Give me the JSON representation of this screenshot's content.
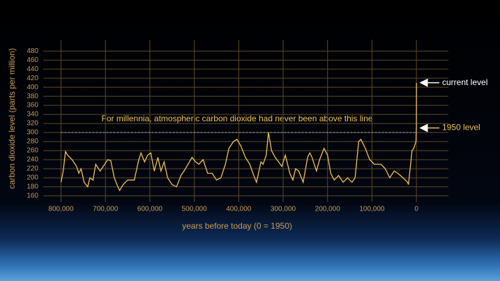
{
  "chart_data": {
    "type": "line",
    "y_label": "carbon dioxide level (parts per million)",
    "x_label": "years before today (0 = 1950)",
    "annotation": "For millennia, atmospheric carbon dioxide had never been above this line",
    "current_label": "current level",
    "reference_label": "1950 level",
    "reference_value": 300,
    "color": "#f2c15a",
    "grid": true,
    "x": [
      800000,
      795000,
      790000,
      785000,
      775000,
      765000,
      760000,
      755000,
      748000,
      740000,
      735000,
      728000,
      722000,
      712000,
      705000,
      695000,
      688000,
      680000,
      672000,
      668000,
      660000,
      650000,
      635000,
      625000,
      620000,
      612000,
      605000,
      598000,
      590000,
      582000,
      575000,
      568000,
      560000,
      550000,
      540000,
      530000,
      520000,
      505000,
      497000,
      490000,
      480000,
      470000,
      460000,
      450000,
      440000,
      430000,
      422000,
      412000,
      404000,
      395000,
      385000,
      375000,
      368000,
      360000,
      350000,
      345000,
      338000,
      333000,
      326000,
      318000,
      310000,
      303000,
      295000,
      285000,
      278000,
      272000,
      265000,
      255000,
      245000,
      240000,
      235000,
      225000,
      218000,
      208000,
      200000,
      193000,
      185000,
      175000,
      165000,
      155000,
      145000,
      138000,
      130000,
      125000,
      115000,
      105000,
      95000,
      80000,
      70000,
      60000,
      50000,
      42000,
      30000,
      20000,
      18000,
      12000,
      10000,
      6000,
      1000,
      0,
      -69
    ],
    "values": [
      190,
      215,
      258,
      250,
      240,
      225,
      210,
      220,
      190,
      180,
      200,
      195,
      230,
      215,
      225,
      240,
      238,
      200,
      180,
      172,
      185,
      195,
      195,
      240,
      255,
      235,
      250,
      255,
      215,
      245,
      215,
      235,
      200,
      185,
      180,
      205,
      220,
      245,
      235,
      230,
      240,
      210,
      210,
      195,
      200,
      230,
      265,
      280,
      285,
      270,
      245,
      230,
      210,
      190,
      235,
      230,
      250,
      300,
      260,
      245,
      235,
      225,
      250,
      210,
      195,
      220,
      215,
      190,
      245,
      255,
      245,
      215,
      240,
      265,
      250,
      210,
      195,
      205,
      190,
      200,
      190,
      200,
      280,
      285,
      265,
      240,
      230,
      230,
      220,
      200,
      215,
      210,
      200,
      190,
      185,
      240,
      260,
      265,
      280,
      310,
      410
    ],
    "xlim": [
      840000,
      -72000
    ],
    "ylim": [
      146,
      505
    ],
    "xticks": [
      {
        "value": 800000,
        "label": "800,000"
      },
      {
        "value": 700000,
        "label": "700,000"
      },
      {
        "value": 600000,
        "label": "600,000"
      },
      {
        "value": 500000,
        "label": "500,000"
      },
      {
        "value": 400000,
        "label": "400,000"
      },
      {
        "value": 300000,
        "label": "300,000"
      },
      {
        "value": 200000,
        "label": "200,000"
      },
      {
        "value": 100000,
        "label": "100,000"
      },
      0
    ],
    "yticks": [
      160,
      180,
      200,
      220,
      240,
      260,
      280,
      300,
      320,
      340,
      360,
      380,
      400,
      420,
      440,
      460,
      480
    ]
  }
}
